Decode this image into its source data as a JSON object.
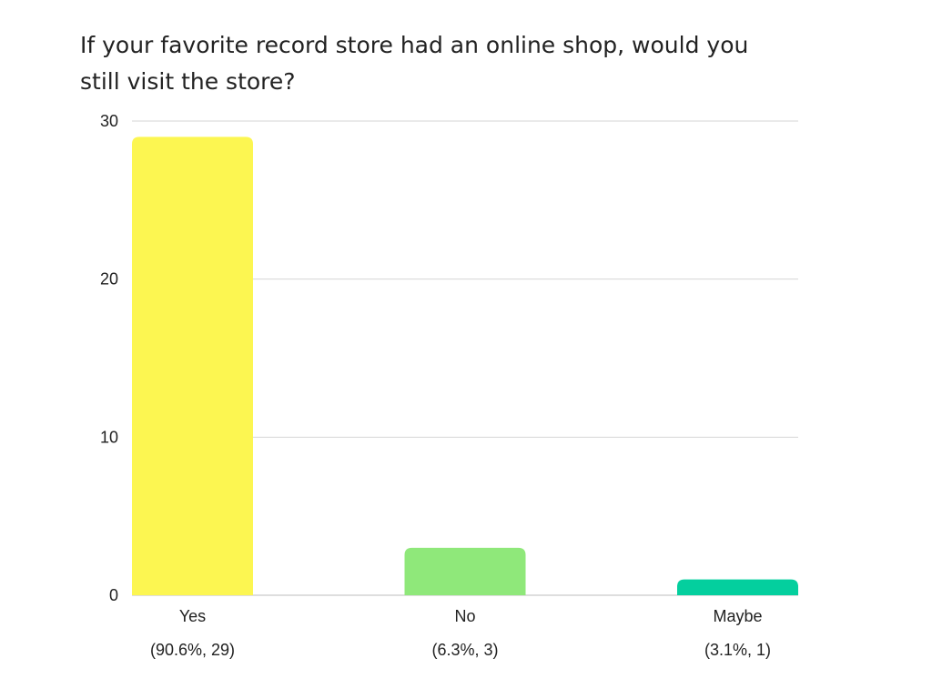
{
  "chart_data": {
    "type": "bar",
    "title": "If your favorite record store had an online shop, would you still visit the store?",
    "categories": [
      "Yes",
      "No",
      "Maybe"
    ],
    "values": [
      29,
      3,
      1
    ],
    "data_labels": [
      "(90.6%, 29)",
      "(6.3%, 3)",
      "(3.1%, 1)"
    ],
    "colors": [
      "#fcf651",
      "#8fe87a",
      "#04cf9e"
    ],
    "ylim": [
      0,
      30
    ],
    "yticks": [
      0,
      10,
      20,
      30
    ],
    "xlabel": "",
    "ylabel": "",
    "grid": true,
    "legend": "none"
  }
}
